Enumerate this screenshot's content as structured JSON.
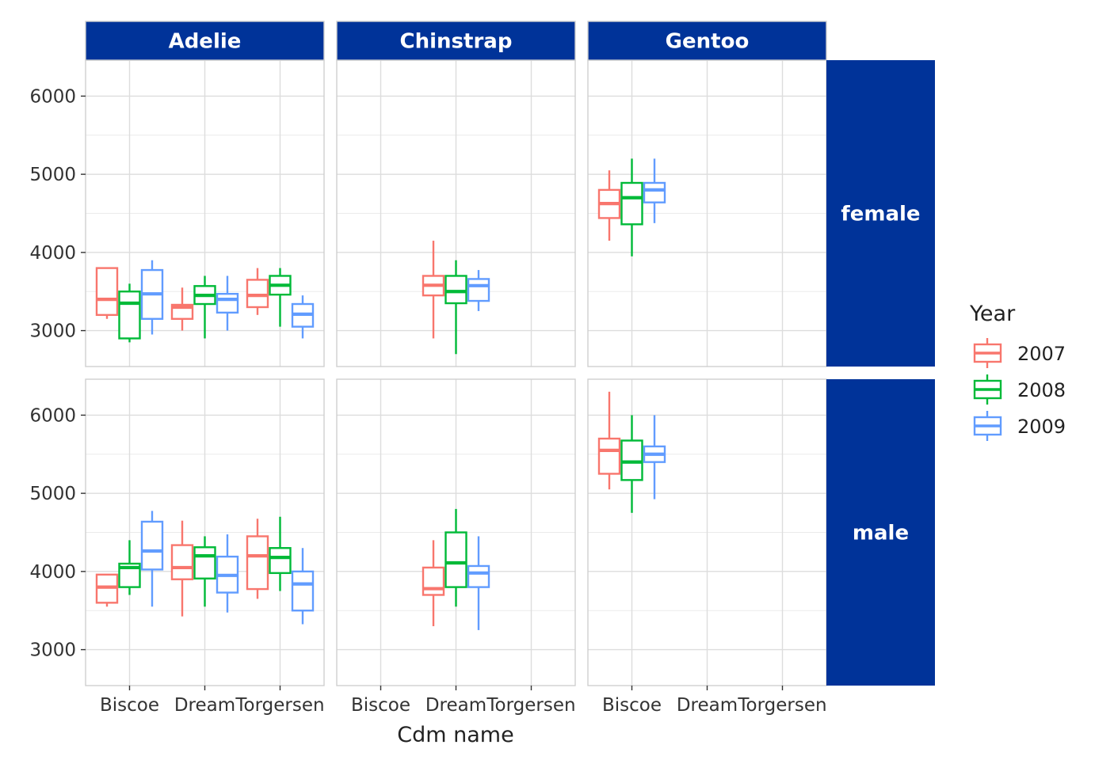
{
  "chart_data": {
    "type": "boxplot",
    "x_label": "Cdm name",
    "x_categories": [
      "Biscoe",
      "Dream",
      "Torgersen"
    ],
    "column_facets": [
      "Adelie",
      "Chinstrap",
      "Gentoo"
    ],
    "row_facets": [
      "female",
      "male"
    ],
    "y_ticks": [
      3000,
      4000,
      5000,
      6000
    ],
    "y_range": [
      2540,
      6460
    ],
    "legend": {
      "title": "Year",
      "placement": "right",
      "entries": [
        {
          "name": "2007",
          "color": "#F8766D"
        },
        {
          "name": "2008",
          "color": "#00BA38"
        },
        {
          "name": "2009",
          "color": "#619CFF"
        }
      ]
    },
    "strip_color": "#003399",
    "grid": true,
    "boxes": [
      {
        "row": "female",
        "col": "Adelie",
        "x": "Biscoe",
        "year": "2007",
        "min": 3150,
        "q1": 3200,
        "median": 3400,
        "q3": 3800,
        "max": 3800
      },
      {
        "row": "female",
        "col": "Adelie",
        "x": "Biscoe",
        "year": "2008",
        "min": 2850,
        "q1": 2900,
        "median": 3350,
        "q3": 3500,
        "max": 3600
      },
      {
        "row": "female",
        "col": "Adelie",
        "x": "Biscoe",
        "year": "2009",
        "min": 2950,
        "q1": 3150,
        "median": 3470,
        "q3": 3775,
        "max": 3900
      },
      {
        "row": "female",
        "col": "Adelie",
        "x": "Dream",
        "year": "2007",
        "min": 3000,
        "q1": 3150,
        "median": 3300,
        "q3": 3330,
        "max": 3550
      },
      {
        "row": "female",
        "col": "Adelie",
        "x": "Dream",
        "year": "2008",
        "min": 2900,
        "q1": 3340,
        "median": 3450,
        "q3": 3570,
        "max": 3700
      },
      {
        "row": "female",
        "col": "Adelie",
        "x": "Dream",
        "year": "2009",
        "min": 3000,
        "q1": 3230,
        "median": 3400,
        "q3": 3470,
        "max": 3700
      },
      {
        "row": "female",
        "col": "Adelie",
        "x": "Torgersen",
        "year": "2007",
        "min": 3200,
        "q1": 3300,
        "median": 3450,
        "q3": 3650,
        "max": 3800
      },
      {
        "row": "female",
        "col": "Adelie",
        "x": "Torgersen",
        "year": "2008",
        "min": 3050,
        "q1": 3460,
        "median": 3580,
        "q3": 3700,
        "max": 3800
      },
      {
        "row": "female",
        "col": "Adelie",
        "x": "Torgersen",
        "year": "2009",
        "min": 2900,
        "q1": 3050,
        "median": 3210,
        "q3": 3340,
        "max": 3450
      },
      {
        "row": "female",
        "col": "Chinstrap",
        "x": "Dream",
        "year": "2007",
        "min": 2900,
        "q1": 3450,
        "median": 3580,
        "q3": 3700,
        "max": 4150
      },
      {
        "row": "female",
        "col": "Chinstrap",
        "x": "Dream",
        "year": "2008",
        "min": 2700,
        "q1": 3350,
        "median": 3500,
        "q3": 3700,
        "max": 3900
      },
      {
        "row": "female",
        "col": "Chinstrap",
        "x": "Dream",
        "year": "2009",
        "min": 3250,
        "q1": 3380,
        "median": 3575,
        "q3": 3660,
        "max": 3775
      },
      {
        "row": "female",
        "col": "Gentoo",
        "x": "Biscoe",
        "year": "2007",
        "min": 4150,
        "q1": 4440,
        "median": 4625,
        "q3": 4800,
        "max": 5050
      },
      {
        "row": "female",
        "col": "Gentoo",
        "x": "Biscoe",
        "year": "2008",
        "min": 3950,
        "q1": 4360,
        "median": 4700,
        "q3": 4890,
        "max": 5200
      },
      {
        "row": "female",
        "col": "Gentoo",
        "x": "Biscoe",
        "year": "2009",
        "min": 4375,
        "q1": 4640,
        "median": 4800,
        "q3": 4890,
        "max": 5200
      },
      {
        "row": "male",
        "col": "Adelie",
        "x": "Biscoe",
        "year": "2007",
        "min": 3550,
        "q1": 3600,
        "median": 3800,
        "q3": 3960,
        "max": 3960
      },
      {
        "row": "male",
        "col": "Adelie",
        "x": "Biscoe",
        "year": "2008",
        "min": 3700,
        "q1": 3800,
        "median": 4050,
        "q3": 4100,
        "max": 4400
      },
      {
        "row": "male",
        "col": "Adelie",
        "x": "Biscoe",
        "year": "2009",
        "min": 3550,
        "q1": 4025,
        "median": 4262,
        "q3": 4637,
        "max": 4775
      },
      {
        "row": "male",
        "col": "Adelie",
        "x": "Dream",
        "year": "2007",
        "min": 3425,
        "q1": 3900,
        "median": 4050,
        "q3": 4337,
        "max": 4650
      },
      {
        "row": "male",
        "col": "Adelie",
        "x": "Dream",
        "year": "2008",
        "min": 3550,
        "q1": 3910,
        "median": 4200,
        "q3": 4310,
        "max": 4450
      },
      {
        "row": "male",
        "col": "Adelie",
        "x": "Dream",
        "year": "2009",
        "min": 3475,
        "q1": 3730,
        "median": 3950,
        "q3": 4190,
        "max": 4475
      },
      {
        "row": "male",
        "col": "Adelie",
        "x": "Torgersen",
        "year": "2007",
        "min": 3650,
        "q1": 3775,
        "median": 4200,
        "q3": 4450,
        "max": 4675
      },
      {
        "row": "male",
        "col": "Adelie",
        "x": "Torgersen",
        "year": "2008",
        "min": 3750,
        "q1": 3980,
        "median": 4180,
        "q3": 4300,
        "max": 4700
      },
      {
        "row": "male",
        "col": "Adelie",
        "x": "Torgersen",
        "year": "2009",
        "min": 3325,
        "q1": 3500,
        "median": 3840,
        "q3": 4000,
        "max": 4300
      },
      {
        "row": "male",
        "col": "Chinstrap",
        "x": "Dream",
        "year": "2007",
        "min": 3300,
        "q1": 3700,
        "median": 3780,
        "q3": 4050,
        "max": 4400
      },
      {
        "row": "male",
        "col": "Chinstrap",
        "x": "Dream",
        "year": "2008",
        "min": 3550,
        "q1": 3800,
        "median": 4110,
        "q3": 4500,
        "max": 4800
      },
      {
        "row": "male",
        "col": "Chinstrap",
        "x": "Dream",
        "year": "2009",
        "min": 3250,
        "q1": 3800,
        "median": 3980,
        "q3": 4070,
        "max": 4450
      },
      {
        "row": "male",
        "col": "Gentoo",
        "x": "Biscoe",
        "year": "2007",
        "min": 5050,
        "q1": 5250,
        "median": 5550,
        "q3": 5700,
        "max": 6300
      },
      {
        "row": "male",
        "col": "Gentoo",
        "x": "Biscoe",
        "year": "2008",
        "min": 4750,
        "q1": 5170,
        "median": 5400,
        "q3": 5675,
        "max": 6000
      },
      {
        "row": "male",
        "col": "Gentoo",
        "x": "Biscoe",
        "year": "2009",
        "min": 4925,
        "q1": 5400,
        "median": 5500,
        "q3": 5600,
        "max": 6000
      }
    ]
  }
}
